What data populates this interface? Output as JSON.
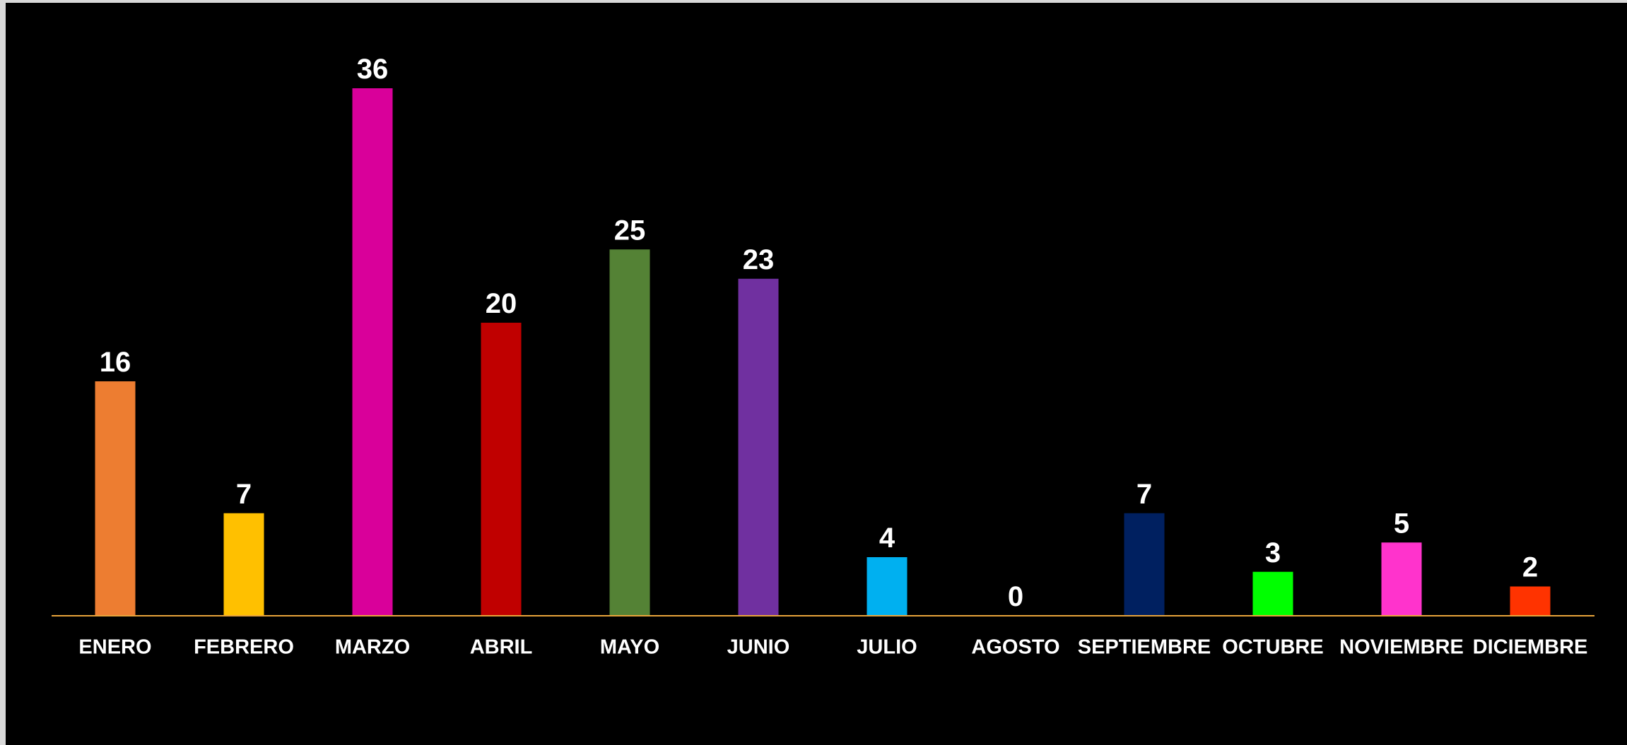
{
  "chart_data": {
    "type": "bar",
    "categories": [
      "ENERO",
      "FEBRERO",
      "MARZO",
      "ABRIL",
      "MAYO",
      "JUNIO",
      "JULIO",
      "AGOSTO",
      "SEPTIEMBRE",
      "OCTUBRE",
      "NOVIEMBRE",
      "DICIEMBRE"
    ],
    "values": [
      16,
      7,
      36,
      20,
      25,
      23,
      4,
      0,
      7,
      3,
      5,
      2
    ],
    "colors": [
      "#ed7d31",
      "#ffc000",
      "#d9009a",
      "#c00000",
      "#548235",
      "#7030a0",
      "#00b0f0",
      "#a5a5a5",
      "#002060",
      "#00ff00",
      "#ff33cc",
      "#ff3300"
    ],
    "axis_color": "#e8a33a"
  }
}
